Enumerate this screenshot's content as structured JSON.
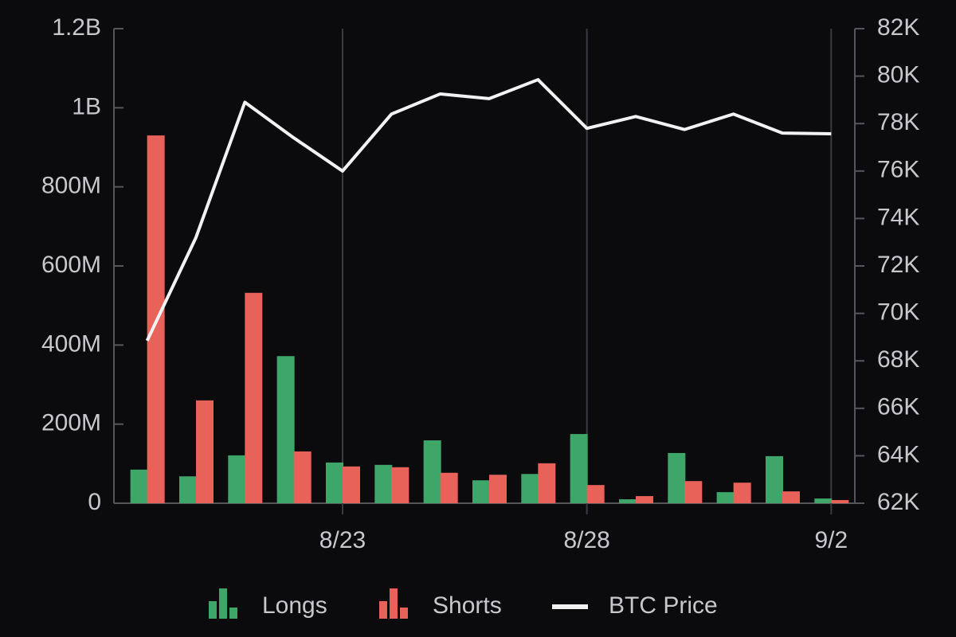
{
  "chart_data": {
    "type": "bar",
    "categories": [
      null,
      null,
      null,
      null,
      "8/23",
      null,
      null,
      null,
      null,
      "8/28",
      null,
      null,
      null,
      null,
      "9/2"
    ],
    "series": [
      {
        "name": "Longs",
        "color": "#3fa66a",
        "values": [
          85000000,
          68000000,
          121000000,
          372000000,
          103000000,
          97000000,
          159000000,
          58000000,
          74000000,
          175000000,
          10000000,
          127000000,
          28000000,
          119000000,
          12000000
        ]
      },
      {
        "name": "Shorts",
        "color": "#e8625a",
        "values": [
          930000000,
          260000000,
          532000000,
          131000000,
          93000000,
          91000000,
          77000000,
          72000000,
          101000000,
          46000000,
          18000000,
          56000000,
          52000000,
          30000000,
          8000000
        ]
      },
      {
        "name": "BTC Price",
        "type": "line",
        "axis": "y2",
        "color": "#f2f2f2",
        "values": [
          68850,
          73200,
          78900,
          77400,
          76000,
          78400,
          79250,
          79050,
          79850,
          77800,
          78300,
          77750,
          78400,
          77600,
          77570
        ]
      }
    ],
    "ylim": [
      0,
      1200000000
    ],
    "yticks": [
      0,
      {
        "value": 200000000,
        "label": "200M"
      },
      {
        "value": 400000000,
        "label": "400M"
      },
      {
        "value": 600000000,
        "label": "600M"
      },
      {
        "value": 800000000,
        "label": "800M"
      },
      {
        "value": 1000000000,
        "label": "1B"
      },
      {
        "value": 1200000000,
        "label": "1.2B"
      }
    ],
    "y2lim": [
      62000,
      82000
    ],
    "y2ticks": [
      {
        "value": 62000,
        "label": "62K"
      },
      {
        "value": 64000,
        "label": "64K"
      },
      {
        "value": 66000,
        "label": "66K"
      },
      {
        "value": 68000,
        "label": "68K"
      },
      {
        "value": 70000,
        "label": "70K"
      },
      {
        "value": 72000,
        "label": "72K"
      },
      {
        "value": 74000,
        "label": "74K"
      },
      {
        "value": 76000,
        "label": "76K"
      },
      {
        "value": 78000,
        "label": "78K"
      },
      {
        "value": 80000,
        "label": "80K"
      },
      {
        "value": 82000,
        "label": "82K"
      }
    ],
    "legend": "bottom"
  }
}
